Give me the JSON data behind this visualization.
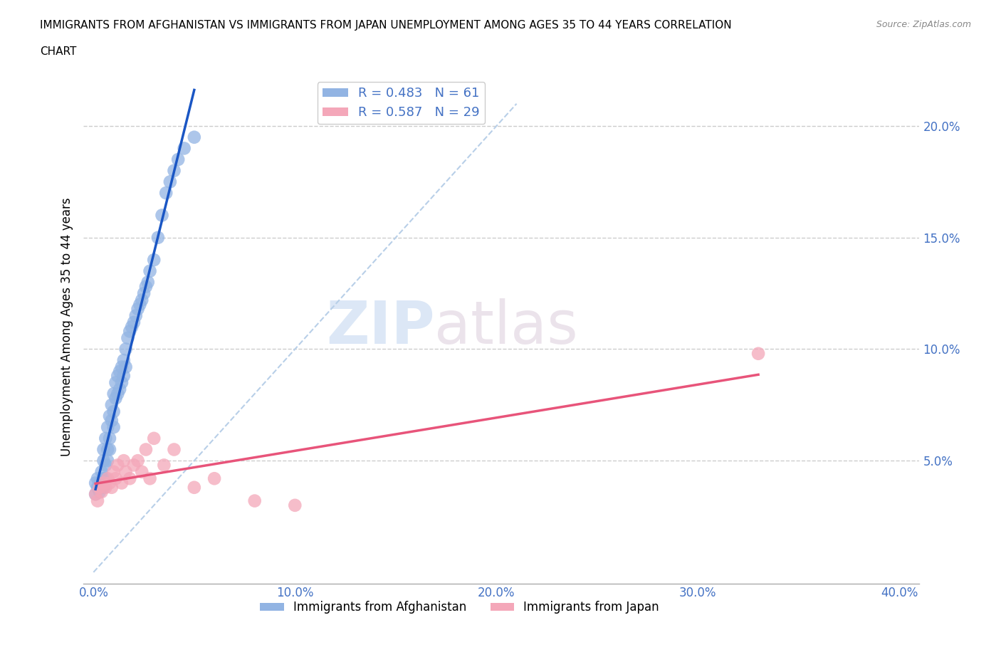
{
  "title_line1": "IMMIGRANTS FROM AFGHANISTAN VS IMMIGRANTS FROM JAPAN UNEMPLOYMENT AMONG AGES 35 TO 44 YEARS CORRELATION",
  "title_line2": "CHART",
  "source": "Source: ZipAtlas.com",
  "ylabel": "Unemployment Among Ages 35 to 44 years",
  "xlim": [
    -0.005,
    0.41
  ],
  "ylim": [
    -0.005,
    0.225
  ],
  "xticks": [
    0.0,
    0.1,
    0.2,
    0.3,
    0.4
  ],
  "xticklabels": [
    "0.0%",
    "10.0%",
    "20.0%",
    "30.0%",
    "40.0%"
  ],
  "yticks": [
    0.05,
    0.1,
    0.15,
    0.2
  ],
  "yticklabels": [
    "5.0%",
    "10.0%",
    "15.0%",
    "20.0%"
  ],
  "afghanistan_color": "#92b4e3",
  "japan_color": "#f4a7b9",
  "afghanistan_R": 0.483,
  "afghanistan_N": 61,
  "japan_R": 0.587,
  "japan_N": 29,
  "afghanistan_line_color": "#1a56c4",
  "japan_line_color": "#e8547a",
  "diagonal_color": "#b8cfe8",
  "watermark_zip": "ZIP",
  "watermark_atlas": "atlas",
  "afghanistan_x": [
    0.001,
    0.001,
    0.002,
    0.002,
    0.003,
    0.003,
    0.003,
    0.004,
    0.004,
    0.004,
    0.005,
    0.005,
    0.005,
    0.005,
    0.006,
    0.006,
    0.006,
    0.007,
    0.007,
    0.007,
    0.008,
    0.008,
    0.008,
    0.009,
    0.009,
    0.01,
    0.01,
    0.01,
    0.011,
    0.011,
    0.012,
    0.012,
    0.013,
    0.013,
    0.014,
    0.014,
    0.015,
    0.015,
    0.016,
    0.016,
    0.017,
    0.018,
    0.019,
    0.02,
    0.021,
    0.022,
    0.023,
    0.024,
    0.025,
    0.026,
    0.027,
    0.028,
    0.03,
    0.032,
    0.034,
    0.036,
    0.038,
    0.04,
    0.042,
    0.045,
    0.05
  ],
  "afghanistan_y": [
    0.035,
    0.04,
    0.038,
    0.042,
    0.04,
    0.038,
    0.036,
    0.04,
    0.045,
    0.038,
    0.042,
    0.05,
    0.055,
    0.038,
    0.06,
    0.048,
    0.042,
    0.055,
    0.065,
    0.05,
    0.06,
    0.07,
    0.055,
    0.068,
    0.075,
    0.08,
    0.072,
    0.065,
    0.085,
    0.078,
    0.088,
    0.08,
    0.09,
    0.082,
    0.092,
    0.085,
    0.095,
    0.088,
    0.1,
    0.092,
    0.105,
    0.108,
    0.11,
    0.112,
    0.115,
    0.118,
    0.12,
    0.122,
    0.125,
    0.128,
    0.13,
    0.135,
    0.14,
    0.15,
    0.16,
    0.17,
    0.175,
    0.18,
    0.185,
    0.19,
    0.195
  ],
  "japan_x": [
    0.001,
    0.002,
    0.003,
    0.004,
    0.005,
    0.006,
    0.007,
    0.008,
    0.009,
    0.01,
    0.011,
    0.012,
    0.014,
    0.015,
    0.016,
    0.018,
    0.02,
    0.022,
    0.024,
    0.026,
    0.028,
    0.03,
    0.035,
    0.04,
    0.05,
    0.06,
    0.08,
    0.1,
    0.33
  ],
  "japan_y": [
    0.035,
    0.032,
    0.038,
    0.036,
    0.04,
    0.038,
    0.042,
    0.04,
    0.038,
    0.045,
    0.042,
    0.048,
    0.04,
    0.05,
    0.045,
    0.042,
    0.048,
    0.05,
    0.045,
    0.055,
    0.042,
    0.06,
    0.048,
    0.055,
    0.038,
    0.042,
    0.032,
    0.03,
    0.098
  ]
}
